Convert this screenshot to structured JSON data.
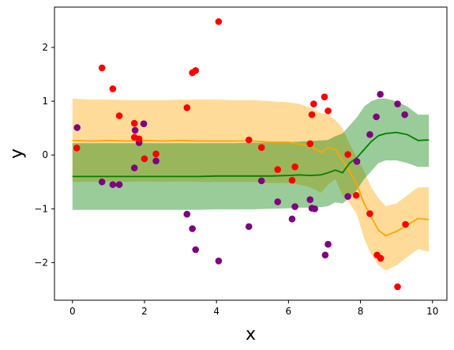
{
  "chart_data": {
    "type": "scatter",
    "xlabel": "x",
    "ylabel": "y",
    "xlim": [
      -0.5,
      10.4
    ],
    "ylim": [
      -2.7,
      2.75
    ],
    "xticks": [
      "0",
      "2",
      "4",
      "6",
      "8",
      "10"
    ],
    "yticks": [
      "−2",
      "−1",
      "0",
      "1",
      "2"
    ],
    "grid": false,
    "colors": {
      "red_points": "#ff0000",
      "purple_points": "#800080",
      "orange_line": "#ffa500",
      "orange_band": "#ffa500",
      "green_line": "#008000",
      "green_band": "#008000"
    },
    "scatter_red": [
      {
        "x": 0.12,
        "y": 0.13
      },
      {
        "x": 0.82,
        "y": 1.62
      },
      {
        "x": 1.12,
        "y": 1.23
      },
      {
        "x": 1.3,
        "y": 0.73
      },
      {
        "x": 1.72,
        "y": 0.59
      },
      {
        "x": 1.72,
        "y": 0.33
      },
      {
        "x": 1.85,
        "y": 0.3
      },
      {
        "x": 2.0,
        "y": -0.07
      },
      {
        "x": 2.32,
        "y": 0.02
      },
      {
        "x": 3.18,
        "y": 0.88
      },
      {
        "x": 3.33,
        "y": 1.53
      },
      {
        "x": 3.42,
        "y": 1.57
      },
      {
        "x": 4.06,
        "y": 2.48
      },
      {
        "x": 4.9,
        "y": 0.28
      },
      {
        "x": 5.25,
        "y": 0.14
      },
      {
        "x": 5.7,
        "y": -0.27
      },
      {
        "x": 6.1,
        "y": -0.47
      },
      {
        "x": 6.18,
        "y": -0.22
      },
      {
        "x": 6.6,
        "y": 0.21
      },
      {
        "x": 6.65,
        "y": 0.75
      },
      {
        "x": 6.7,
        "y": 0.95
      },
      {
        "x": 7.0,
        "y": 1.08
      },
      {
        "x": 7.1,
        "y": 0.82
      },
      {
        "x": 7.65,
        "y": 0.01
      },
      {
        "x": 7.88,
        "y": -0.75
      },
      {
        "x": 8.26,
        "y": -1.09
      },
      {
        "x": 8.46,
        "y": -1.86
      },
      {
        "x": 8.56,
        "y": -1.92
      },
      {
        "x": 9.03,
        "y": -2.45
      },
      {
        "x": 9.25,
        "y": -1.29
      }
    ],
    "scatter_purple": [
      {
        "x": 0.13,
        "y": 0.51
      },
      {
        "x": 0.82,
        "y": -0.5
      },
      {
        "x": 1.12,
        "y": -0.55
      },
      {
        "x": 1.3,
        "y": -0.55
      },
      {
        "x": 1.72,
        "y": -0.24
      },
      {
        "x": 1.74,
        "y": 0.46
      },
      {
        "x": 1.85,
        "y": 0.23
      },
      {
        "x": 1.98,
        "y": 0.58
      },
      {
        "x": 2.32,
        "y": -0.11
      },
      {
        "x": 3.18,
        "y": -1.1
      },
      {
        "x": 3.33,
        "y": -1.37
      },
      {
        "x": 3.42,
        "y": -1.76
      },
      {
        "x": 4.06,
        "y": -1.97
      },
      {
        "x": 4.9,
        "y": -1.33
      },
      {
        "x": 5.25,
        "y": -0.48
      },
      {
        "x": 5.7,
        "y": -0.87
      },
      {
        "x": 6.1,
        "y": -1.19
      },
      {
        "x": 6.18,
        "y": -0.96
      },
      {
        "x": 6.6,
        "y": -0.83
      },
      {
        "x": 6.65,
        "y": -0.99
      },
      {
        "x": 6.73,
        "y": -1.0
      },
      {
        "x": 7.02,
        "y": -1.86
      },
      {
        "x": 7.1,
        "y": -1.66
      },
      {
        "x": 7.65,
        "y": -0.77
      },
      {
        "x": 7.9,
        "y": -0.12
      },
      {
        "x": 8.26,
        "y": 0.38
      },
      {
        "x": 8.44,
        "y": 0.71
      },
      {
        "x": 8.55,
        "y": 1.13
      },
      {
        "x": 9.03,
        "y": 0.95
      },
      {
        "x": 9.23,
        "y": 0.75
      }
    ],
    "series": [
      {
        "x": [
          0,
          0.5,
          1,
          1.5,
          2,
          2.5,
          3,
          3.5,
          4,
          4.5,
          5,
          5.5,
          6,
          6.3,
          6.6,
          6.9,
          7.1,
          7.3,
          7.5,
          7.7,
          7.9,
          8.1,
          8.3,
          8.5,
          8.7,
          9.0,
          9.3,
          9.6,
          9.9
        ],
        "y": [
          0.27,
          0.26,
          0.27,
          0.26,
          0.27,
          0.26,
          0.27,
          0.26,
          0.26,
          0.26,
          0.26,
          0.24,
          0.24,
          0.2,
          0.17,
          0.05,
          0.14,
          0.1,
          -0.1,
          -0.3,
          -0.55,
          -0.9,
          -1.15,
          -1.4,
          -1.5,
          -1.42,
          -1.3,
          -1.18,
          -1.2
        ],
        "band_upper": [
          1.05,
          1.03,
          1.03,
          1.02,
          1.02,
          1.02,
          1.03,
          1.03,
          1.03,
          1.02,
          1.02,
          1.0,
          0.98,
          0.95,
          0.88,
          0.78,
          0.75,
          0.65,
          0.5,
          0.2,
          -0.05,
          -0.3,
          -0.6,
          -0.8,
          -0.95,
          -0.9,
          -0.75,
          -0.6,
          -0.6
        ],
        "band_lower": [
          -0.5,
          -0.5,
          -0.49,
          -0.5,
          -0.49,
          -0.5,
          -0.49,
          -0.5,
          -0.5,
          -0.5,
          -0.5,
          -0.52,
          -0.52,
          -0.55,
          -0.6,
          -0.7,
          -0.55,
          -0.45,
          -0.75,
          -0.9,
          -1.1,
          -1.55,
          -1.85,
          -2.05,
          -2.15,
          -2.05,
          -1.9,
          -1.75,
          -1.8
        ]
      },
      {
        "x": [
          0,
          0.5,
          1,
          1.5,
          2,
          2.5,
          3,
          3.5,
          4,
          4.5,
          5,
          5.5,
          6,
          6.3,
          6.6,
          6.9,
          7.1,
          7.3,
          7.5,
          7.7,
          7.9,
          8.1,
          8.3,
          8.5,
          8.7,
          9.0,
          9.3,
          9.6,
          9.9
        ],
        "y": [
          -0.4,
          -0.4,
          -0.4,
          -0.4,
          -0.4,
          -0.4,
          -0.4,
          -0.4,
          -0.39,
          -0.39,
          -0.39,
          -0.39,
          -0.38,
          -0.37,
          -0.38,
          -0.37,
          -0.33,
          -0.28,
          -0.33,
          -0.15,
          -0.05,
          0.1,
          0.25,
          0.36,
          0.4,
          0.42,
          0.38,
          0.27,
          0.28
        ],
        "band_upper": [
          0.22,
          0.22,
          0.22,
          0.22,
          0.22,
          0.22,
          0.22,
          0.22,
          0.22,
          0.22,
          0.23,
          0.23,
          0.24,
          0.25,
          0.26,
          0.27,
          0.28,
          0.35,
          0.4,
          0.55,
          0.7,
          0.9,
          1.0,
          1.05,
          1.05,
          1.0,
          0.9,
          0.75,
          0.75
        ],
        "band_lower": [
          -1.02,
          -1.02,
          -1.02,
          -1.02,
          -1.02,
          -1.02,
          -1.02,
          -1.02,
          -1.01,
          -1.01,
          -1.01,
          -1.0,
          -0.99,
          -0.98,
          -0.98,
          -0.97,
          -0.95,
          -0.88,
          -0.9,
          -0.8,
          -0.65,
          -0.45,
          -0.3,
          -0.15,
          -0.1,
          -0.1,
          -0.15,
          -0.22,
          -0.22
        ]
      }
    ]
  }
}
